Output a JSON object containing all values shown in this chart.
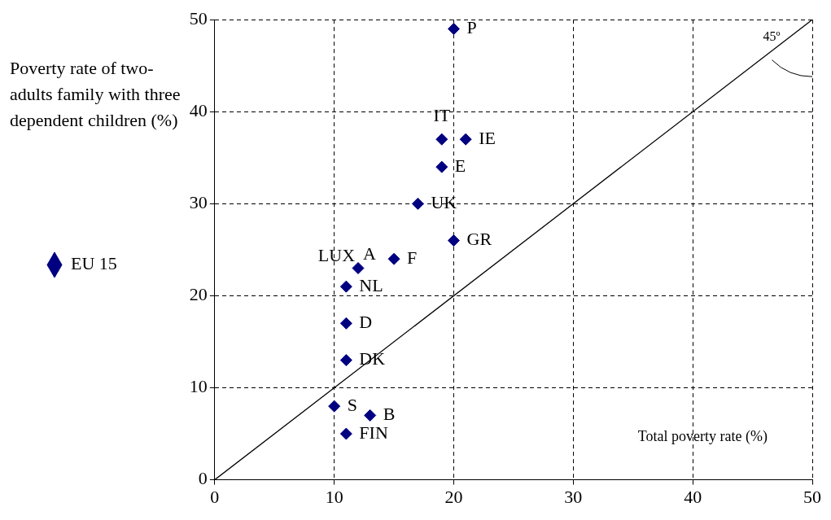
{
  "chart_data": {
    "type": "scatter",
    "ylabel": "Poverty rate of two-adults family with three dependent children (%)",
    "xlabel": "Total poverty rate (%)",
    "xlim": [
      0,
      50
    ],
    "xticks": [
      0,
      10,
      20,
      30,
      40,
      50
    ],
    "ylim": [
      0,
      50
    ],
    "yticks": [
      0,
      10,
      20,
      30,
      40,
      50
    ],
    "grid": true,
    "legend": "left",
    "marker": "diamond",
    "series": [
      {
        "name": "EU 15",
        "color": "#000080",
        "x": [
          20,
          19,
          21,
          19,
          17,
          20,
          15,
          12,
          11,
          11,
          11,
          10,
          13,
          11
        ],
        "values": [
          49,
          37,
          37,
          34,
          30,
          26,
          24,
          23,
          21,
          17,
          13,
          8,
          7,
          5
        ]
      },
      {
        "type": "line",
        "color": "#000000",
        "x": [
          0,
          50
        ],
        "values": [
          0,
          50
        ],
        "marker": "none"
      }
    ],
    "annotations": [
      "45º",
      {
        "text": "P",
        "x": 20,
        "y": 49
      },
      {
        "text": "IT",
        "x": 19,
        "y": 37
      },
      {
        "text": "IE",
        "x": 21,
        "y": 37
      },
      {
        "text": "E",
        "x": 19,
        "y": 34
      },
      {
        "text": "UK",
        "x": 17,
        "y": 30
      },
      {
        "text": "GR",
        "x": 20,
        "y": 26
      },
      {
        "text": "F",
        "x": 15,
        "y": 24
      },
      {
        "text": "LUX",
        "x": 12,
        "y": 23
      },
      {
        "text": "A",
        "x": 12,
        "y": 23
      },
      {
        "text": "NL",
        "x": 11,
        "y": 21
      },
      {
        "text": "D",
        "x": 11,
        "y": 17
      },
      {
        "text": "DK",
        "x": 11,
        "y": 13
      },
      {
        "text": "S",
        "x": 10,
        "y": 8
      },
      {
        "text": "B",
        "x": 13,
        "y": 7
      },
      {
        "text": "FIN",
        "x": 11,
        "y": 5
      }
    ]
  }
}
